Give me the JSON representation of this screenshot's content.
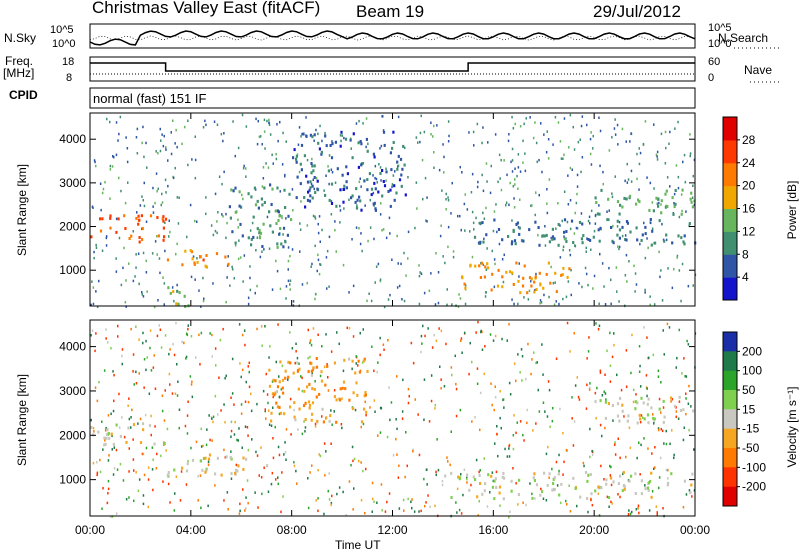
{
  "header": {
    "title": "Christmas Valley East (fitACF)",
    "beam": "Beam 19",
    "date": "29/Jul/2012"
  },
  "strip": {
    "nsky_label": "N.Sky",
    "nsky_ticks": [
      "10^5",
      "10^0"
    ],
    "nsearch_label": "N.Search",
    "nsearch_ticks": [
      "10^5",
      "10^0"
    ],
    "freq_label_line1": "Freq.",
    "freq_label_line2": "[MHz]",
    "freq_ticks": [
      "18",
      "8"
    ],
    "nave_label": "Nave",
    "nave_ticks": [
      "60",
      "0"
    ],
    "cpid_label": "CPID",
    "cpid_value": "normal (fast) 151 IF"
  },
  "panels": {
    "power_ylabel": "Slant Range [km]",
    "velocity_ylabel": "Slant Range [km]",
    "xlabel": "Time UT",
    "power_cbar_label": "Power [dB]",
    "velocity_cbar_label": "Velocity [m s⁻¹]"
  },
  "chart_data": [
    {
      "type": "heatmap",
      "title": "Power",
      "xlabel": "Time UT",
      "ylabel": "Slant Range [km]",
      "x_ticks": [
        "00:00",
        "04:00",
        "08:00",
        "12:00",
        "16:00",
        "20:00",
        "00:00"
      ],
      "xlim_hours": [
        0,
        24
      ],
      "y_ticks": [
        1000,
        2000,
        3000,
        4000
      ],
      "ylim": [
        180,
        4600
      ],
      "colorbar": {
        "label": "Power [dB]",
        "ticks": [
          4,
          8,
          12,
          16,
          20,
          24,
          28
        ],
        "colors": [
          "#1414cc",
          "#2f56a6",
          "#3f8f70",
          "#67b55c",
          "#f0a800",
          "#ff7a00",
          "#ff3a00",
          "#e00000"
        ]
      },
      "features": [
        {
          "t0": 0.0,
          "t1": 3.0,
          "r0": 1650,
          "r1": 2300,
          "level": 24
        },
        {
          "t0": 3.0,
          "t1": 5.5,
          "r0": 1100,
          "r1": 1500,
          "level": 22
        },
        {
          "t0": 3.0,
          "t1": 4.0,
          "r0": 200,
          "r1": 800,
          "level": 14
        },
        {
          "t0": 5.5,
          "t1": 8.0,
          "r0": 1500,
          "r1": 3000,
          "level": 10
        },
        {
          "t0": 8.0,
          "t1": 12.5,
          "r0": 2400,
          "r1": 4200,
          "level": 6
        },
        {
          "t0": 14.5,
          "t1": 19.0,
          "r0": 500,
          "r1": 1200,
          "level": 20
        },
        {
          "t0": 15.0,
          "t1": 24.0,
          "r0": 1600,
          "r1": 2200,
          "level": 8
        },
        {
          "t0": 20.0,
          "t1": 24.0,
          "r0": 2300,
          "r1": 2900,
          "level": 12
        }
      ]
    },
    {
      "type": "heatmap",
      "title": "Velocity",
      "xlabel": "Time UT",
      "ylabel": "Slant Range [km]",
      "x_ticks": [
        "00:00",
        "04:00",
        "08:00",
        "12:00",
        "16:00",
        "20:00",
        "00:00"
      ],
      "xlim_hours": [
        0,
        24
      ],
      "y_ticks": [
        1000,
        2000,
        3000,
        4000
      ],
      "ylim": [
        180,
        4600
      ],
      "colorbar": {
        "label": "Velocity [m s⁻¹]",
        "ticks": [
          200,
          100,
          50,
          15,
          -15,
          -50,
          -100,
          -200
        ],
        "colors": [
          "#1a2ea8",
          "#1f7a4a",
          "#2aa52a",
          "#7fd04f",
          "#c8c8c0",
          "#f5a623",
          "#ff7a00",
          "#ff3300",
          "#e00000"
        ]
      },
      "features": [
        {
          "t0": 0.0,
          "t1": 3.0,
          "r0": 1800,
          "r1": 2300,
          "level": 0
        },
        {
          "t0": 3.0,
          "t1": 7.0,
          "r0": 1100,
          "r1": 1600,
          "level": 0
        },
        {
          "t0": 7.0,
          "t1": 11.0,
          "r0": 2300,
          "r1": 3800,
          "level": -40
        },
        {
          "t0": 14.0,
          "t1": 24.0,
          "r0": 600,
          "r1": 1200,
          "level": 0
        },
        {
          "t0": 20.0,
          "t1": 24.0,
          "r0": 2300,
          "r1": 2900,
          "level": 0
        }
      ]
    }
  ]
}
